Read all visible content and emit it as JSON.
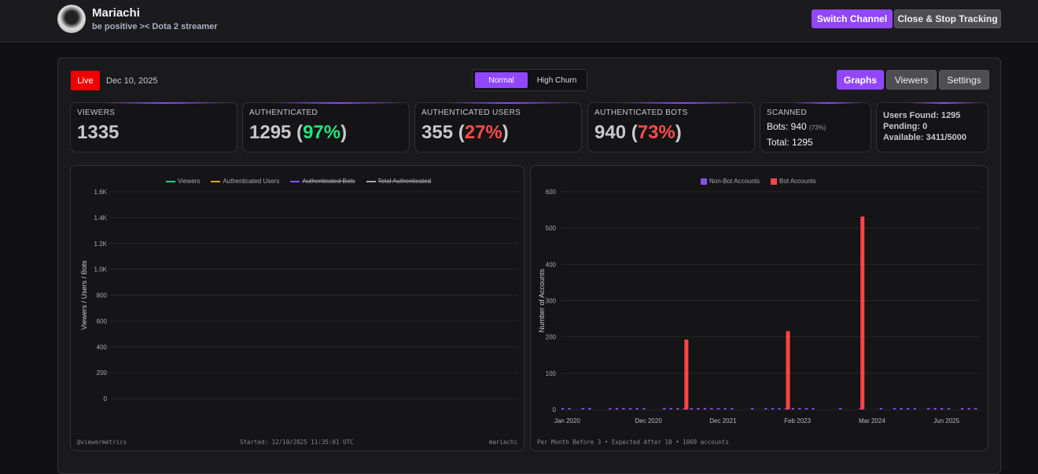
{
  "header": {
    "channel_name": "Mariachi",
    "subtitle": "be positive >< Dota 2 streamer",
    "switch_channel": "Switch Channel",
    "close_stop": "Close & Stop Tracking"
  },
  "status": {
    "live": "Live",
    "date": "Dec 10, 2025"
  },
  "mode": {
    "normal": "Normal",
    "high_churn": "High Churn"
  },
  "tabs": {
    "graphs": "Graphs",
    "viewers": "Viewers",
    "settings": "Settings"
  },
  "cards": {
    "viewers": {
      "label": "VIEWERS",
      "value": "1335"
    },
    "authenticated": {
      "label": "AUTHENTICATED",
      "value": "1295",
      "pct": "97%"
    },
    "auth_users": {
      "label": "AUTHENTICATED USERS",
      "value": "355",
      "pct": "27%"
    },
    "auth_bots": {
      "label": "AUTHENTICATED BOTS",
      "value": "940",
      "pct": "73%"
    },
    "scanned": {
      "label": "SCANNED",
      "bots": "Bots: 940",
      "bots_pct": "(73%)",
      "total": "Total: 1295"
    },
    "queue": {
      "users_found": "Users Found: 1295",
      "pending": "Pending: 0",
      "available": "Available: 3411/5000"
    }
  },
  "colors": {
    "accent": "#9147ff",
    "live": "#ee0000",
    "green": "#22e57a",
    "red": "#ff4b4b"
  },
  "chart_data": [
    {
      "type": "line",
      "ylabel": "Viewers / Users / Bots",
      "ylim": [
        0,
        1600
      ],
      "yticks": [
        "0",
        "200",
        "400",
        "600",
        "800",
        "1.0K",
        "1.2K",
        "1.4K",
        "1.6K"
      ],
      "legend": [
        {
          "name": "Viewers",
          "color": "#22d17a"
        },
        {
          "name": "Authenticated Users",
          "color": "#e6a020"
        },
        {
          "name": "Authenticated Bots",
          "color": "#8b4dff",
          "hidden": true
        },
        {
          "name": "Total Authenticated",
          "color": "#aaaaaa",
          "hidden": true
        }
      ],
      "series": [],
      "footer": {
        "left": "@viewermetrics",
        "center": "Started: 12/10/2025 11:35:01 UTC",
        "right": "mariachi"
      }
    },
    {
      "type": "bar",
      "ylabel": "Number of Accounts",
      "ylim": [
        0,
        600
      ],
      "yticks": [
        0,
        100,
        200,
        300,
        400,
        500,
        600
      ],
      "legend": [
        {
          "name": "Non-Bot Accounts",
          "color": "#8b4dff"
        },
        {
          "name": "Bot Accounts",
          "color": "#ff4444"
        }
      ],
      "slots": 62,
      "tick_labels": [
        {
          "i": 0,
          "label": "Jan 2020"
        },
        {
          "i": 12,
          "label": "Dec 2020"
        },
        {
          "i": 23,
          "label": "Dec 2021"
        },
        {
          "i": 34,
          "label": "Feb 2023"
        },
        {
          "i": 45,
          "label": "Mar 2024"
        },
        {
          "i": 56,
          "label": "Jun 2025"
        }
      ],
      "non_bot": [
        1,
        2,
        0,
        1,
        5,
        0,
        0,
        1,
        1,
        2,
        1,
        3,
        1,
        0,
        0,
        1,
        1,
        1,
        1,
        1,
        1,
        1,
        1,
        1,
        1,
        1,
        0,
        0,
        1,
        0,
        1,
        1,
        1,
        1,
        2,
        1,
        1,
        4,
        0,
        0,
        0,
        2,
        0,
        0,
        1,
        0,
        0,
        1,
        0,
        1,
        1,
        1,
        1,
        0,
        1,
        1,
        1,
        3,
        0,
        1,
        2,
        1
      ],
      "bots": [
        0,
        0,
        0,
        0,
        0,
        0,
        0,
        0,
        0,
        0,
        0,
        0,
        0,
        0,
        0,
        0,
        0,
        0,
        193,
        0,
        0,
        0,
        0,
        0,
        0,
        0,
        0,
        0,
        0,
        0,
        0,
        0,
        0,
        216,
        0,
        0,
        0,
        0,
        0,
        0,
        0,
        0,
        0,
        0,
        532,
        0,
        0,
        0,
        0,
        0,
        0,
        0,
        0,
        0,
        0,
        0,
        0,
        0,
        0,
        0,
        0,
        0
      ],
      "footer": "Per Month Before 3 • Expected After 10 • 1069 accounts"
    }
  ]
}
